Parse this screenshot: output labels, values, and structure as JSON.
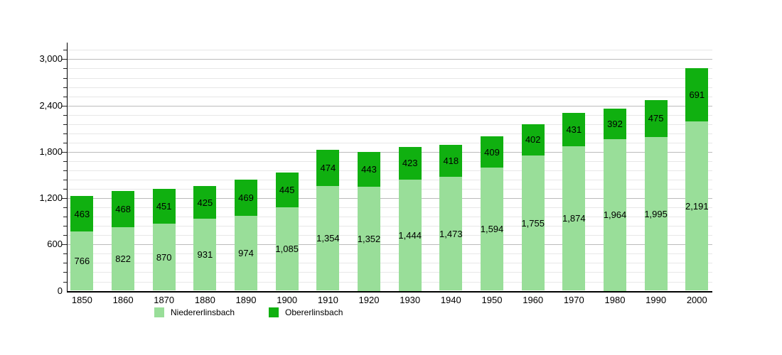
{
  "chart_data": {
    "type": "bar",
    "stacked": true,
    "title": "",
    "xlabel": "",
    "ylabel": "",
    "categories": [
      "1850",
      "1860",
      "1870",
      "1880",
      "1890",
      "1900",
      "1910",
      "1920",
      "1930",
      "1940",
      "1950",
      "1960",
      "1970",
      "1980",
      "1990",
      "2000"
    ],
    "series": [
      {
        "name": "Niedererlinsbach",
        "color": "#99DE99",
        "values": [
          766,
          822,
          870,
          931,
          974,
          1085,
          1354,
          1352,
          1444,
          1473,
          1594,
          1755,
          1874,
          1964,
          1995,
          2191
        ]
      },
      {
        "name": "Obererlinsbach",
        "color": "#10B010",
        "values": [
          463,
          468,
          451,
          425,
          469,
          445,
          474,
          443,
          423,
          418,
          409,
          402,
          431,
          392,
          475,
          691
        ]
      }
    ],
    "ylim": [
      0,
      3120
    ],
    "y_major_ticks": [
      0,
      600,
      1200,
      1800,
      2400,
      3000
    ],
    "y_minor_step": 120,
    "grid": true,
    "legend_position": "bottom",
    "value_labels": true,
    "colors": {
      "major_gridline": "#bbbbbb",
      "minor_gridline": "#e7e7e7",
      "axis": "#000000",
      "label_text": "#000000",
      "background": "#ffffff"
    }
  }
}
